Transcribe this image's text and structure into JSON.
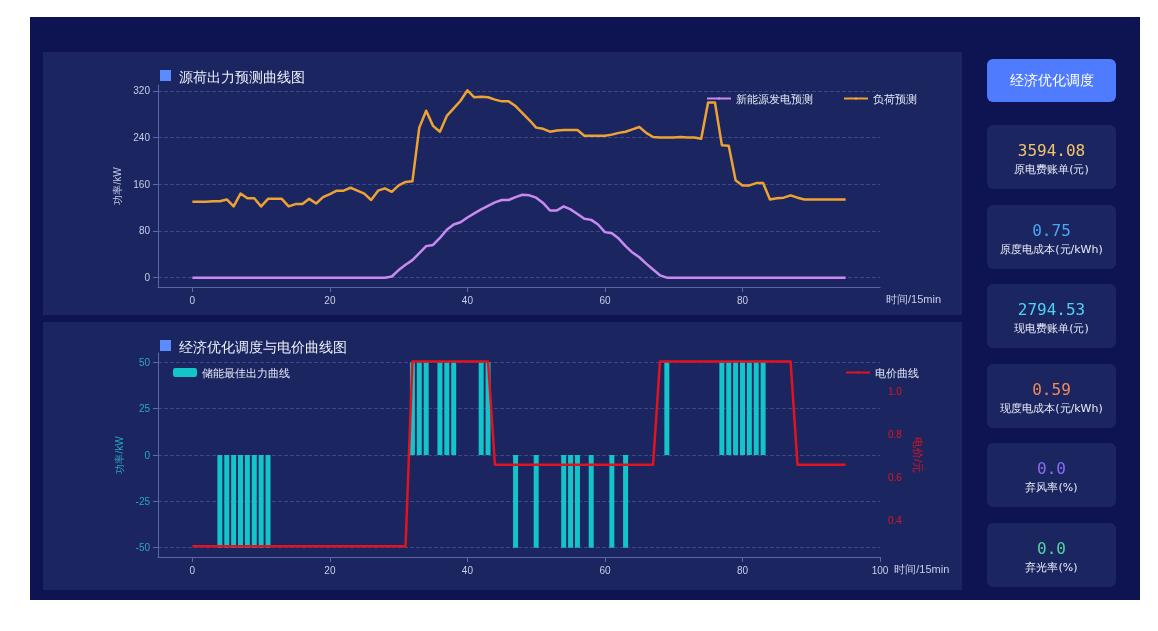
{
  "chart_data": [
    {
      "type": "line",
      "title": "源荷出力预测曲线图",
      "xlabel": "时间/15min",
      "ylabel": "功率/kW",
      "x": [
        0,
        1,
        2,
        3,
        4,
        5,
        6,
        7,
        8,
        9,
        10,
        11,
        12,
        13,
        14,
        15,
        16,
        17,
        18,
        19,
        20,
        21,
        22,
        23,
        24,
        25,
        26,
        27,
        28,
        29,
        30,
        31,
        32,
        33,
        34,
        35,
        36,
        37,
        38,
        39,
        40,
        41,
        42,
        43,
        44,
        45,
        46,
        47,
        48,
        49,
        50,
        51,
        52,
        53,
        54,
        55,
        56,
        57,
        58,
        59,
        60,
        61,
        62,
        63,
        64,
        65,
        66,
        67,
        68,
        69,
        70,
        71,
        72,
        73,
        74,
        75,
        76,
        77,
        78,
        79,
        80,
        81,
        82,
        83,
        84,
        85,
        86,
        87,
        88,
        89,
        90,
        91,
        92,
        93,
        94,
        95
      ],
      "xlim": [
        -5,
        100
      ],
      "xticks": [
        0,
        20,
        40,
        60,
        80
      ],
      "ylim": [
        -16,
        330
      ],
      "yticks": [
        0,
        80,
        160,
        240,
        320
      ],
      "series": [
        {
          "name": "新能源发电预测",
          "color": "#c98af0",
          "values": [
            0,
            0,
            0,
            0,
            0,
            0,
            0,
            0,
            0,
            0,
            0,
            0,
            0,
            0,
            0,
            0,
            0,
            0,
            0,
            0,
            0,
            0,
            0,
            0,
            0,
            0,
            0,
            0,
            0,
            2,
            13,
            22,
            30,
            42,
            54,
            56,
            68,
            82,
            91,
            95,
            103,
            110,
            117,
            123,
            129,
            133,
            133,
            138,
            142,
            141,
            137,
            128,
            115,
            115,
            122,
            117,
            109,
            101,
            99,
            91,
            78,
            76,
            67,
            54,
            43,
            35,
            24,
            14,
            4,
            0,
            0,
            0,
            0,
            0,
            0,
            0,
            0,
            0,
            0,
            0,
            0,
            0,
            0,
            0,
            0,
            0,
            0,
            0,
            0,
            0,
            0,
            0,
            0,
            0,
            0,
            0
          ]
        },
        {
          "name": "负荷预测",
          "color": "#eda232",
          "values": [
            130,
            130,
            130,
            131,
            131,
            134,
            122,
            144,
            136,
            136,
            122,
            135,
            135,
            135,
            122,
            126,
            126,
            135,
            127,
            138,
            143,
            149,
            149,
            154,
            149,
            144,
            133,
            149,
            153,
            147,
            158,
            164,
            165,
            257,
            286,
            260,
            250,
            277,
            290,
            303,
            321,
            309,
            310,
            309,
            305,
            302,
            302,
            294,
            282,
            270,
            257,
            255,
            250,
            252,
            253,
            253,
            253,
            243,
            243,
            243,
            243,
            245,
            248,
            250,
            254,
            258,
            248,
            241,
            240,
            240,
            240,
            241,
            240,
            240,
            238,
            300,
            300,
            227,
            226,
            167,
            158,
            158,
            162,
            162,
            134,
            136,
            137,
            141,
            137,
            134,
            134,
            134,
            134,
            134,
            134,
            134
          ]
        }
      ],
      "grid": "y",
      "legend": "top right",
      "marker": "none"
    },
    {
      "type": "bar",
      "title": "经济优化调度与电价曲线图",
      "xlabel": "时间/15min",
      "ylabel": "功率/kW",
      "y2label": "电价/元",
      "x": [
        0,
        1,
        2,
        3,
        4,
        5,
        6,
        7,
        8,
        9,
        10,
        11,
        12,
        13,
        14,
        15,
        16,
        17,
        18,
        19,
        20,
        21,
        22,
        23,
        24,
        25,
        26,
        27,
        28,
        29,
        30,
        31,
        32,
        33,
        34,
        35,
        36,
        37,
        38,
        39,
        40,
        41,
        42,
        43,
        44,
        45,
        46,
        47,
        48,
        49,
        50,
        51,
        52,
        53,
        54,
        55,
        56,
        57,
        58,
        59,
        60,
        61,
        62,
        63,
        64,
        65,
        66,
        67,
        68,
        69,
        70,
        71,
        72,
        73,
        74,
        75,
        76,
        77,
        78,
        79,
        80,
        81,
        82,
        83,
        84,
        85,
        86,
        87,
        88,
        89,
        90,
        91,
        92,
        93,
        94,
        95
      ],
      "xlim": [
        -5,
        100
      ],
      "xticks": [
        0,
        20,
        40,
        60,
        80,
        100
      ],
      "ylim": [
        -55,
        55
      ],
      "yticks": [
        -50,
        -25,
        0,
        25,
        50
      ],
      "y2lim": [
        0.23,
        1.18
      ],
      "y2ticks": [
        0.4,
        0.6,
        0.8,
        {
          "value": 1,
          "label": "1.0"
        }
      ],
      "series": [
        {
          "name": "储能最佳出力曲线",
          "type": "bar",
          "color": "#13c4c8",
          "x": [
            4,
            5,
            6,
            7,
            8,
            9,
            10,
            11,
            32,
            33,
            34,
            36,
            37,
            38,
            42,
            43,
            47,
            50,
            54,
            55,
            56,
            58,
            61,
            63,
            69,
            77,
            78,
            79,
            80,
            81,
            82,
            83
          ],
          "values": [
            -50,
            -50,
            -50,
            -50,
            -50,
            -50,
            -50,
            -50,
            50,
            50,
            50,
            50,
            50,
            50,
            50,
            50,
            -50,
            -50,
            -50,
            -50,
            -50,
            -50,
            -50,
            -50,
            50,
            50,
            50,
            50,
            50,
            50,
            50,
            50
          ]
        },
        {
          "name": "电价曲线",
          "type": "line",
          "axis": "y2",
          "color": "#e0131f",
          "values": [
            0.28,
            0.28,
            0.28,
            0.28,
            0.28,
            0.28,
            0.28,
            0.28,
            0.28,
            0.28,
            0.28,
            0.28,
            0.28,
            0.28,
            0.28,
            0.28,
            0.28,
            0.28,
            0.28,
            0.28,
            0.28,
            0.28,
            0.28,
            0.28,
            0.28,
            0.28,
            0.28,
            0.28,
            0.28,
            0.28,
            0.28,
            0.28,
            1.14,
            1.14,
            1.14,
            1.14,
            1.14,
            1.14,
            1.14,
            1.14,
            1.14,
            1.14,
            1.14,
            1.14,
            0.66,
            0.66,
            0.66,
            0.66,
            0.66,
            0.66,
            0.66,
            0.66,
            0.66,
            0.66,
            0.66,
            0.66,
            0.66,
            0.66,
            0.66,
            0.66,
            0.66,
            0.66,
            0.66,
            0.66,
            0.66,
            0.66,
            0.66,
            0.66,
            1.14,
            1.14,
            1.14,
            1.14,
            1.14,
            1.14,
            1.14,
            1.14,
            1.14,
            1.14,
            1.14,
            1.14,
            1.14,
            1.14,
            1.14,
            1.14,
            1.14,
            1.14,
            1.14,
            1.14,
            0.66,
            0.66,
            0.66,
            0.66,
            0.66,
            0.66,
            0.66,
            0.66
          ]
        }
      ],
      "grid": "y",
      "legend": "top",
      "marker": "none"
    },
    {
      "type": "other",
      "annotations": [
        "经济优化调度",
        "3594.08",
        "原电费账单(元)",
        "0.75",
        "原度电成本(元/kWh)",
        "2794.53",
        "现电费账单(元)",
        "0.59",
        "现度电成本(元/kWh)",
        "0.0",
        "弃风率(%)",
        "0.0",
        "弃光率(%)"
      ]
    }
  ]
}
